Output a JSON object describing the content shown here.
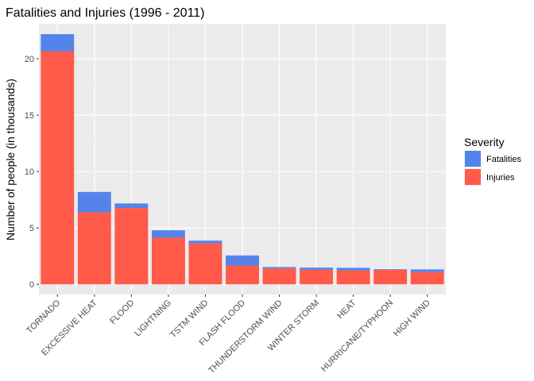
{
  "chart_data": {
    "type": "bar",
    "stacked": true,
    "title": "Fatalities and Injuries (1996 - 2011)",
    "xlabel": "",
    "ylabel": "Number of people (in thousands)",
    "ylim": [
      -0.9,
      23.1
    ],
    "yticks": [
      0,
      5,
      10,
      15,
      20
    ],
    "grid": true,
    "legend_position": "right",
    "legend_title": "Severity",
    "categories": [
      "TORNADO",
      "EXCESSIVE HEAT",
      "FLOOD",
      "LIGHTNING",
      "TSTM WIND",
      "FLASH FLOOD",
      "THUNDERSTORM WIND",
      "WINTER STORM",
      "HEAT",
      "HURRICANE/TYPHOON",
      "HIGH WIND"
    ],
    "series": [
      {
        "name": "Injuries",
        "color": "#ff5a4a",
        "values": [
          20.67,
          6.39,
          6.76,
          4.14,
          3.63,
          1.67,
          1.4,
          1.29,
          1.22,
          1.28,
          1.08
        ]
      },
      {
        "name": "Fatalities",
        "color": "#5483eb",
        "values": [
          1.51,
          1.8,
          0.41,
          0.65,
          0.24,
          0.89,
          0.13,
          0.19,
          0.24,
          0.06,
          0.24
        ]
      }
    ],
    "legend_order": [
      "Fatalities",
      "Injuries"
    ]
  }
}
